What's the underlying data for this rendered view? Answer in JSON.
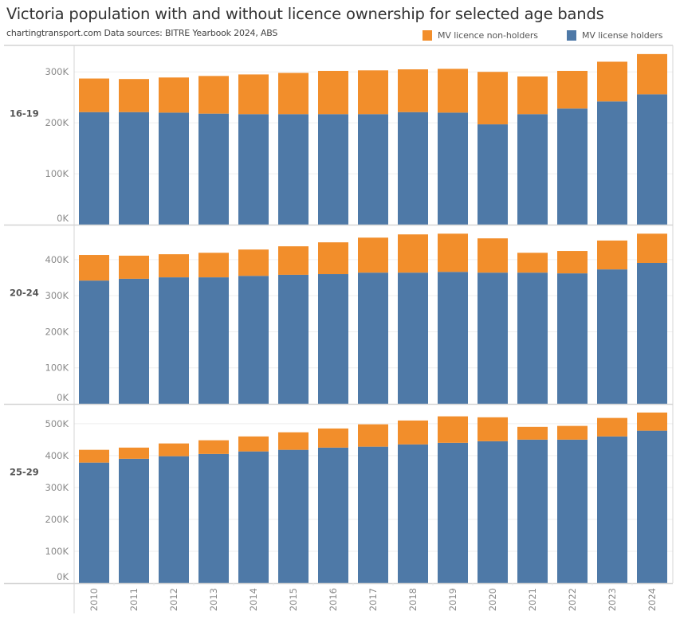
{
  "header": {
    "title": "Victoria population with and without licence ownership for selected age bands",
    "subtitle": "chartingtransport.com  Data sources: BITRE Yearbook 2024, ABS"
  },
  "legend": [
    {
      "label": "MV licence non-holders",
      "color": "#F28E2B"
    },
    {
      "label": "MV license holders",
      "color": "#4E79A7"
    }
  ],
  "chart_data": {
    "type": "bar",
    "stacked": true,
    "title": "Victoria population with and without licence ownership for selected age bands",
    "subtitle": "chartingtransport.com  Data sources: BITRE Yearbook 2024, ABS",
    "xlabel": "",
    "ylabel": "",
    "grid": true,
    "legend_position": "top-right",
    "categories": [
      "2010",
      "2011",
      "2012",
      "2013",
      "2014",
      "2015",
      "2016",
      "2017",
      "2018",
      "2019",
      "2020",
      "2021",
      "2022",
      "2023",
      "2024"
    ],
    "series_names": [
      "MV license holders",
      "MV licence non-holders"
    ],
    "series_colors": {
      "MV license holders": "#4E79A7",
      "MV licence non-holders": "#F28E2B"
    },
    "panels": [
      {
        "row_label": "16-19",
        "ylim": [
          0,
          352000
        ],
        "yticks": [
          0,
          100000,
          200000,
          300000
        ],
        "ytick_labels": [
          "0K",
          "100K",
          "200K",
          "300K"
        ],
        "series": [
          {
            "name": "MV license holders",
            "values": [
              221000,
              221000,
              220000,
              218000,
              217000,
              217000,
              217000,
              217000,
              221000,
              220000,
              197000,
              217000,
              228000,
              242000,
              256000
            ]
          },
          {
            "name": "MV licence non-holders",
            "values": [
              66000,
              65000,
              69000,
              74000,
              78000,
              81000,
              85000,
              86000,
              84000,
              86000,
              103000,
              74000,
              74000,
              78000,
              79000
            ]
          }
        ]
      },
      {
        "row_label": "20-24",
        "ylim": [
          0,
          497000
        ],
        "yticks": [
          0,
          100000,
          200000,
          300000,
          400000
        ],
        "ytick_labels": [
          "0K",
          "100K",
          "200K",
          "300K",
          "400K"
        ],
        "series": [
          {
            "name": "MV license holders",
            "values": [
              342000,
              347000,
              351000,
              351000,
              355000,
              358000,
              360000,
              364000,
              364000,
              366000,
              364000,
              364000,
              362000,
              373000,
              391000
            ]
          },
          {
            "name": "MV licence non-holders",
            "values": [
              71000,
              64000,
              64000,
              68000,
              73000,
              79000,
              88000,
              97000,
              106000,
              106000,
              95000,
              55000,
              62000,
              80000,
              81000
            ]
          }
        ]
      },
      {
        "row_label": "25-29",
        "ylim": [
          0,
          562000
        ],
        "yticks": [
          0,
          100000,
          200000,
          300000,
          400000,
          500000
        ],
        "ytick_labels": [
          "0K",
          "100K",
          "200K",
          "300K",
          "400K",
          "500K"
        ],
        "series": [
          {
            "name": "MV license holders",
            "values": [
              378000,
              390000,
              398000,
              405000,
              413000,
              418000,
              425000,
              428000,
              435000,
              440000,
              445000,
              450000,
              450000,
              460000,
              478000
            ]
          },
          {
            "name": "MV licence non-holders",
            "values": [
              40000,
              35000,
              40000,
              43000,
              47000,
              55000,
              60000,
              70000,
              75000,
              83000,
              75000,
              40000,
              43000,
              58000,
              57000
            ]
          }
        ]
      }
    ]
  }
}
